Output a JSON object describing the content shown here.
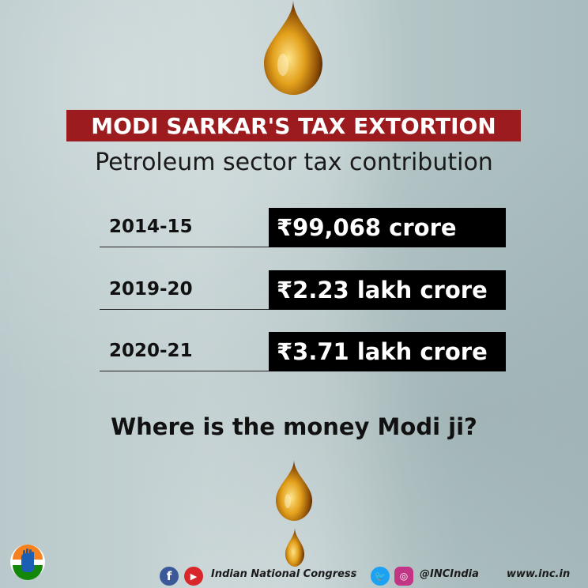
{
  "title": "MODI SARKAR'S TAX EXTORTION",
  "subtitle": "Petroleum sector tax contribution",
  "rows": [
    {
      "year": "2014-15",
      "value": "₹99,068 crore"
    },
    {
      "year": "2019-20",
      "value": "₹2.23 lakh crore"
    },
    {
      "year": "2020-21",
      "value": "₹3.71 lakh crore"
    }
  ],
  "question": "Where is the money Modi ji?",
  "footer": {
    "organization": "Indian National Congress",
    "handle": "@INCIndia",
    "website": "www.inc.in"
  },
  "icons": {
    "facebook": "facebook-icon",
    "youtube": "youtube-icon",
    "twitter": "twitter-icon",
    "instagram": "instagram-icon",
    "oil_drop": "oil-drop-icon",
    "logo": "congress-hand-logo"
  },
  "colors": {
    "title_bg": "#9b1b1e",
    "value_bg": "#000000",
    "oil": "#e0a21c"
  }
}
